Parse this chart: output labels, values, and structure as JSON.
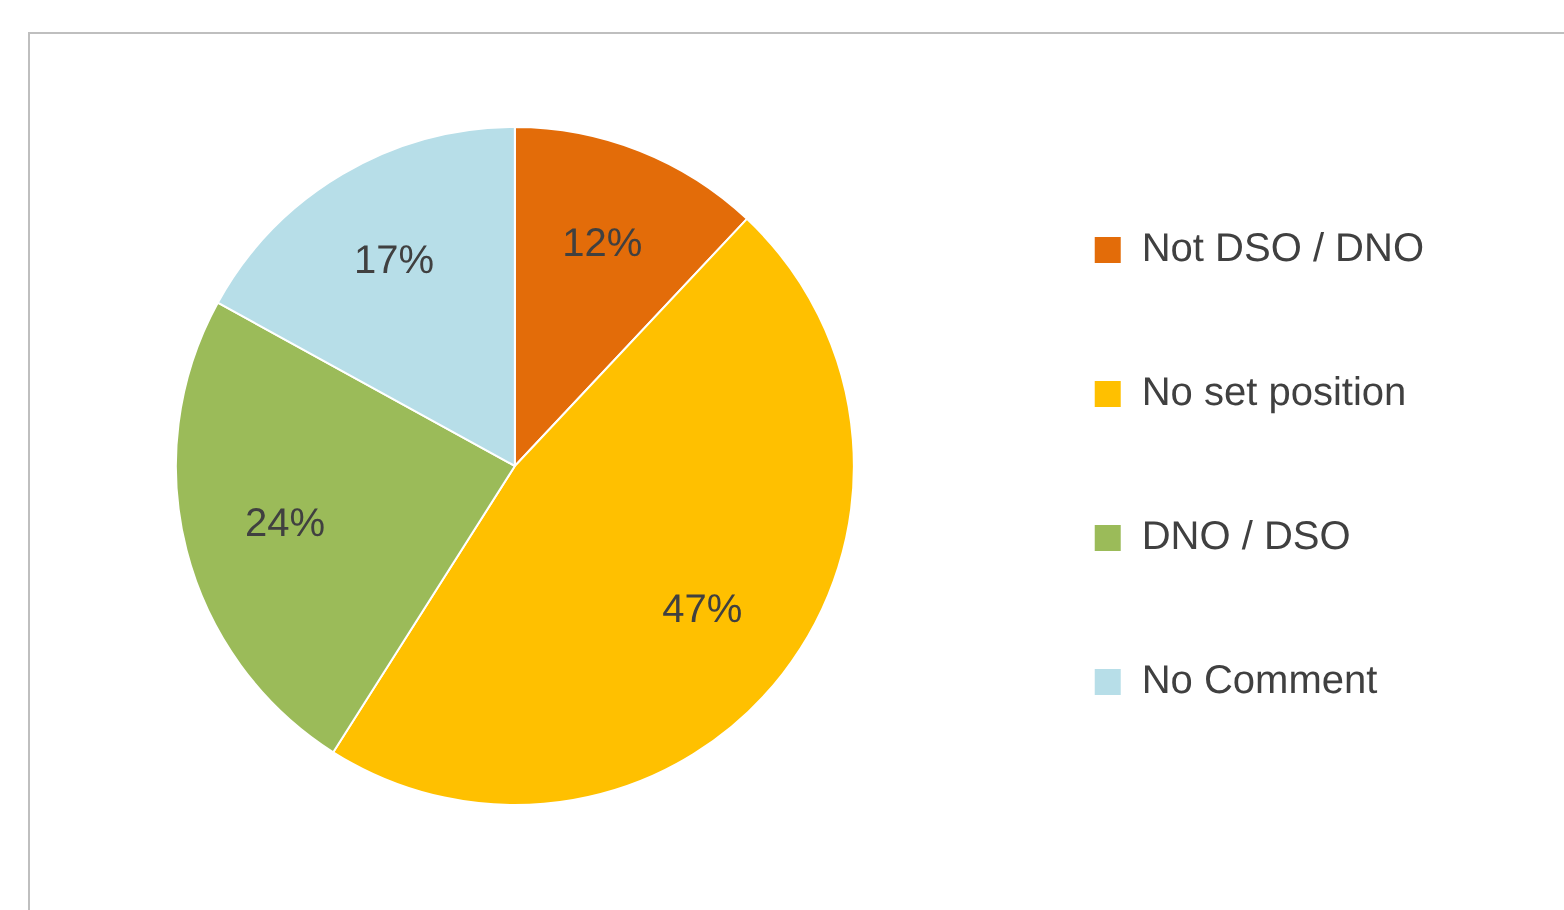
{
  "chart_data": {
    "type": "pie",
    "categories": [
      "Not DSO / DNO",
      "No set position",
      "DNO / DSO",
      "No Comment"
    ],
    "values": [
      12,
      47,
      24,
      17
    ],
    "colors": [
      "#e36c09",
      "#ffc000",
      "#9bbb59",
      "#b7dee8"
    ],
    "value_labels": [
      "12%",
      "47%",
      "24%",
      "17%"
    ],
    "legend": "right"
  }
}
